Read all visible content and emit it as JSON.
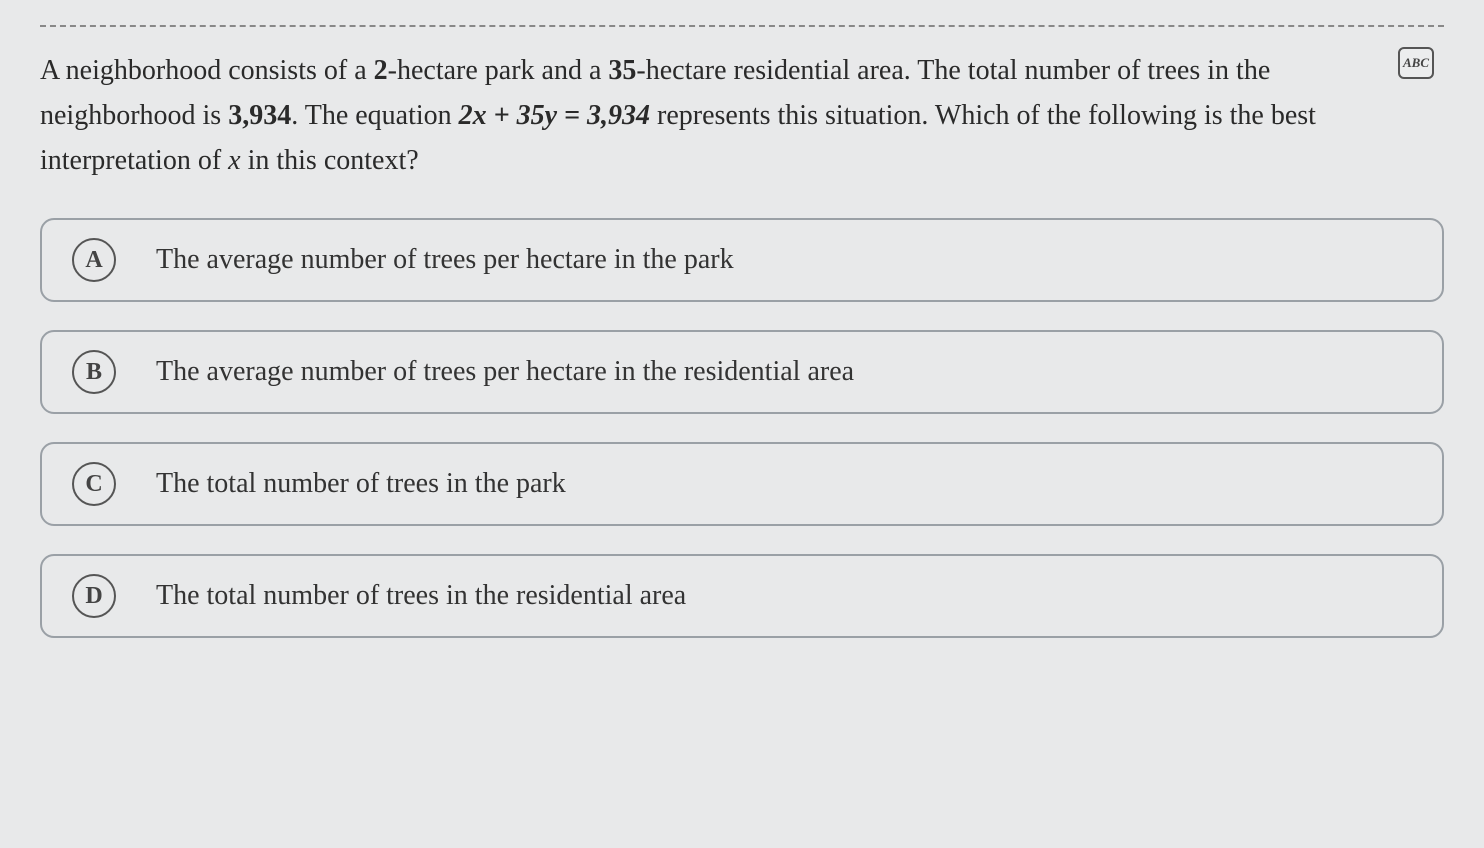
{
  "abc_icon_label": "ABC",
  "question": {
    "part1": "A neighborhood consists of a ",
    "bold1": "2",
    "part2": "-hectare park and a ",
    "bold2": "35",
    "part3": "-hectare residential area. The total number of trees in the neighborhood is ",
    "bold3": "3,934",
    "part4": ". The equation ",
    "equation": "2x + 35y = 3,934",
    "part5": " represents this situation. Which of the following is the best interpretation of ",
    "var": "x",
    "part6": " in this context?"
  },
  "options": [
    {
      "letter": "A",
      "text": "The average number of trees per hectare in the park"
    },
    {
      "letter": "B",
      "text": "The average number of trees per hectare in the residential area"
    },
    {
      "letter": "C",
      "text": "The total number of trees in the park"
    },
    {
      "letter": "D",
      "text": "The total number of trees in the residential area"
    }
  ],
  "colors": {
    "background": "#e8e9ea",
    "text": "#2a2a2a",
    "border": "#9aa0a6",
    "circle_border": "#555"
  }
}
